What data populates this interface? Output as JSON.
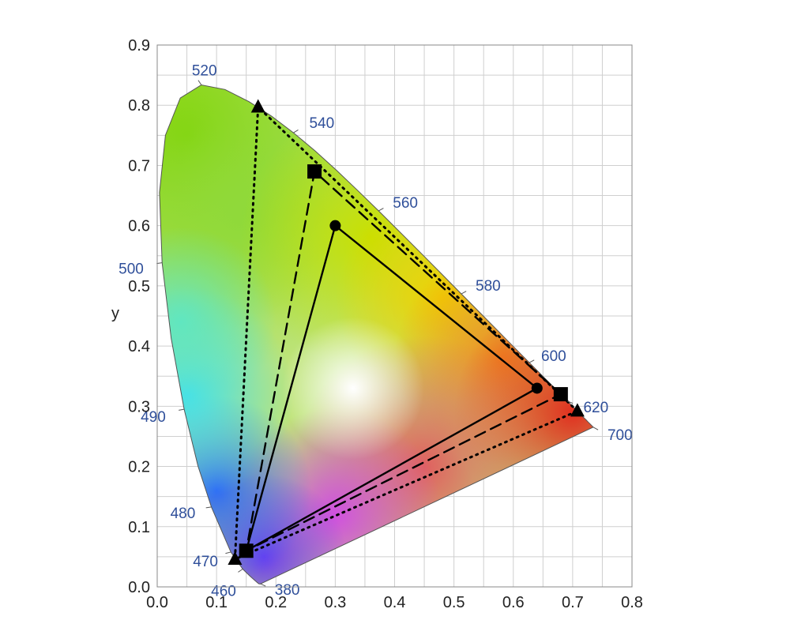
{
  "chart_data": {
    "type": "scatter",
    "title": "",
    "xlabel": "",
    "ylabel": "y",
    "xlim": [
      0.0,
      0.8
    ],
    "ylim": [
      0.0,
      0.9
    ],
    "grid": true,
    "x_ticks": [
      "0.0",
      "0.1",
      "0.2",
      "0.3",
      "0.4",
      "0.5",
      "0.6",
      "0.7",
      "0.8"
    ],
    "y_ticks": [
      "0.0",
      "0.1",
      "0.2",
      "0.3",
      "0.4",
      "0.5",
      "0.6",
      "0.7",
      "0.8",
      "0.9"
    ],
    "spectral_locus": {
      "points": [
        [
          0.1741,
          0.005
        ],
        [
          0.1738,
          0.0049
        ],
        [
          0.1733,
          0.0048
        ],
        [
          0.1726,
          0.0048
        ],
        [
          0.1714,
          0.0051
        ],
        [
          0.1689,
          0.0069
        ],
        [
          0.1644,
          0.0109
        ],
        [
          0.1566,
          0.0177
        ],
        [
          0.144,
          0.0297
        ],
        [
          0.1241,
          0.0578
        ],
        [
          0.0913,
          0.1327
        ],
        [
          0.0687,
          0.2007
        ],
        [
          0.0454,
          0.295
        ],
        [
          0.0235,
          0.4127
        ],
        [
          0.0082,
          0.5384
        ],
        [
          0.0039,
          0.6548
        ],
        [
          0.0139,
          0.7502
        ],
        [
          0.0389,
          0.812
        ],
        [
          0.0743,
          0.8338
        ],
        [
          0.1142,
          0.8262
        ],
        [
          0.1547,
          0.8059
        ],
        [
          0.1929,
          0.7816
        ],
        [
          0.2296,
          0.7543
        ],
        [
          0.2658,
          0.7243
        ],
        [
          0.3016,
          0.6923
        ],
        [
          0.3373,
          0.6589
        ],
        [
          0.3731,
          0.6245
        ],
        [
          0.4087,
          0.5896
        ],
        [
          0.4441,
          0.5547
        ],
        [
          0.4788,
          0.5202
        ],
        [
          0.5125,
          0.4866
        ],
        [
          0.5448,
          0.4544
        ],
        [
          0.5752,
          0.4242
        ],
        [
          0.6029,
          0.3965
        ],
        [
          0.627,
          0.3725
        ],
        [
          0.6482,
          0.3514
        ],
        [
          0.6658,
          0.334
        ],
        [
          0.6801,
          0.3197
        ],
        [
          0.6915,
          0.3083
        ],
        [
          0.7006,
          0.2993
        ],
        [
          0.7079,
          0.292
        ],
        [
          0.714,
          0.2859
        ],
        [
          0.719,
          0.2809
        ],
        [
          0.723,
          0.277
        ],
        [
          0.726,
          0.274
        ],
        [
          0.7283,
          0.2717
        ],
        [
          0.73,
          0.27
        ],
        [
          0.7311,
          0.2689
        ],
        [
          0.732,
          0.268
        ],
        [
          0.7327,
          0.2673
        ],
        [
          0.7334,
          0.2666
        ],
        [
          0.734,
          0.266
        ],
        [
          0.7344,
          0.2656
        ],
        [
          0.7346,
          0.2654
        ],
        [
          0.7347,
          0.2653
        ]
      ],
      "wavelength_labels": [
        {
          "label": "380",
          "x": 0.1741,
          "y": 0.005
        },
        {
          "label": "460",
          "x": 0.144,
          "y": 0.0297
        },
        {
          "label": "470",
          "x": 0.1241,
          "y": 0.0578
        },
        {
          "label": "480",
          "x": 0.0913,
          "y": 0.1327
        },
        {
          "label": "490",
          "x": 0.0454,
          "y": 0.295
        },
        {
          "label": "500",
          "x": 0.0082,
          "y": 0.5384
        },
        {
          "label": "520",
          "x": 0.0743,
          "y": 0.8338
        },
        {
          "label": "540",
          "x": 0.2296,
          "y": 0.7543
        },
        {
          "label": "560",
          "x": 0.3731,
          "y": 0.6245
        },
        {
          "label": "580",
          "x": 0.5125,
          "y": 0.4866
        },
        {
          "label": "600",
          "x": 0.627,
          "y": 0.3725
        },
        {
          "label": "620",
          "x": 0.6915,
          "y": 0.3083
        },
        {
          "label": "700",
          "x": 0.7347,
          "y": 0.2653
        }
      ]
    },
    "series": [
      {
        "marker": "circle",
        "line": "solid",
        "points": [
          [
            0.64,
            0.33
          ],
          [
            0.3,
            0.6
          ],
          [
            0.15,
            0.06
          ]
        ]
      },
      {
        "marker": "square",
        "line": "dashed",
        "points": [
          [
            0.68,
            0.32
          ],
          [
            0.265,
            0.69
          ],
          [
            0.15,
            0.06
          ]
        ]
      },
      {
        "marker": "triangle",
        "line": "dotted",
        "points": [
          [
            0.708,
            0.292
          ],
          [
            0.17,
            0.797
          ],
          [
            0.131,
            0.046
          ]
        ]
      }
    ]
  }
}
